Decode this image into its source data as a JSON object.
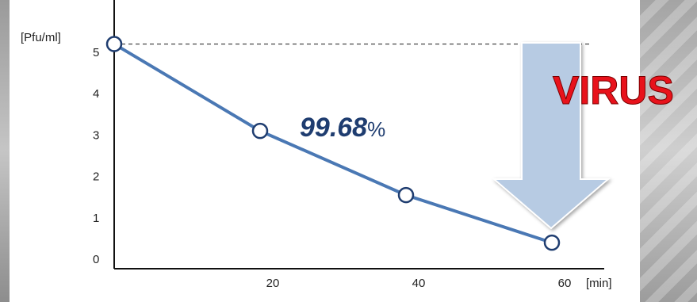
{
  "chart_data": {
    "type": "line",
    "ylabel": "[Pfu/ml]",
    "xlabel": "[min]",
    "x": [
      0,
      20,
      40,
      60
    ],
    "x_tick_labels": [
      "20",
      "40",
      "60"
    ],
    "y_tick_labels": [
      "0",
      "1",
      "2",
      "3",
      "4",
      "5"
    ],
    "ylim": [
      0,
      5
    ],
    "xlim": [
      0,
      65
    ],
    "series": [
      {
        "values": [
          5.2,
          3.1,
          1.55,
          0.4
        ]
      }
    ],
    "reference_line": {
      "y": 5.2,
      "style": "dashed"
    },
    "annotations": {
      "reduction_value": "99.68",
      "reduction_unit": "%",
      "arrow_label": "VIRUS"
    },
    "line_color": "#4a78b4",
    "arrow_color": "#b7cbe3"
  }
}
